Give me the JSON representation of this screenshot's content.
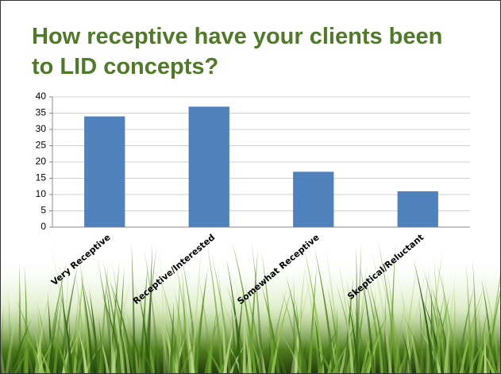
{
  "chart_data": {
    "type": "bar",
    "title": "How receptive have your clients been to LID concepts?",
    "categories": [
      "Very Receptive",
      "Receptive/Interested",
      "Somewhat Receptive",
      "Skeptical/Reluctant"
    ],
    "values": [
      34,
      37,
      17,
      11
    ],
    "color": "#4f81bd",
    "ylim": [
      0,
      40
    ],
    "yticks": [
      0,
      5,
      10,
      15,
      20,
      25,
      30,
      35,
      40
    ],
    "grid": true
  }
}
